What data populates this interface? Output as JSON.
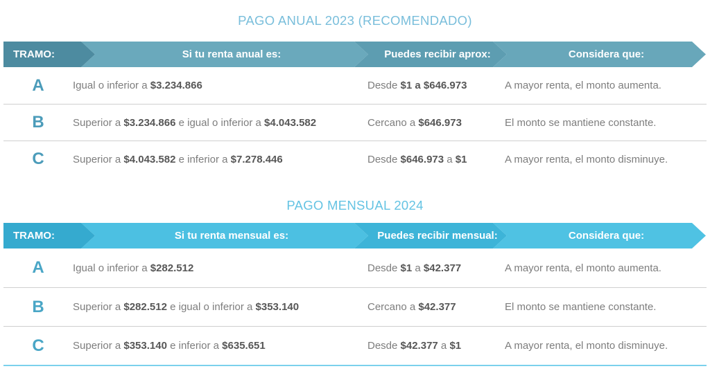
{
  "tables": [
    {
      "title": "PAGO ANUAL 2023 (RECOMENDADO)",
      "columns": [
        "TRAMO:",
        "Si tu renta anual es:",
        "Puedes recibir aprox:",
        "Considera que:"
      ],
      "theme": {
        "title": "#79bedb",
        "seg1": "#4d8ba0",
        "seg2": "#6aa9bc",
        "seg3": "#5d9db1",
        "seg4": "#68a7ba",
        "letter": "#4c9cba"
      },
      "rows": [
        {
          "tramo": "A",
          "renta": [
            {
              "text": "Igual o inferior a ",
              "bold": false
            },
            {
              "text": "$3.234.866",
              "bold": true
            }
          ],
          "recibe": [
            {
              "text": "Desde ",
              "bold": false
            },
            {
              "text": "$1 a $646.973",
              "bold": true
            }
          ],
          "considera": "A mayor renta, el monto aumenta."
        },
        {
          "tramo": "B",
          "renta": [
            {
              "text": "Superior a ",
              "bold": false
            },
            {
              "text": "$3.234.866",
              "bold": true
            },
            {
              "text": " e igual o inferior a ",
              "bold": false
            },
            {
              "text": "$4.043.582",
              "bold": true
            }
          ],
          "recibe": [
            {
              "text": "Cercano a ",
              "bold": false
            },
            {
              "text": "$646.973",
              "bold": true
            }
          ],
          "considera": "El monto se mantiene constante."
        },
        {
          "tramo": "C",
          "renta": [
            {
              "text": "Superior a ",
              "bold": false
            },
            {
              "text": "$4.043.582",
              "bold": true
            },
            {
              "text": " e inferior a ",
              "bold": false
            },
            {
              "text": "$7.278.446",
              "bold": true
            }
          ],
          "recibe": [
            {
              "text": "Desde ",
              "bold": false
            },
            {
              "text": "$646.973",
              "bold": true
            },
            {
              "text": " a ",
              "bold": false
            },
            {
              "text": "$1",
              "bold": true
            }
          ],
          "considera": "A mayor renta, el monto disminuye."
        }
      ]
    },
    {
      "title": "PAGO MENSUAL 2024",
      "columns": [
        "TRAMO:",
        "Si tu renta mensual es:",
        "Puedes recibir mensual:",
        "Considera que:"
      ],
      "theme": {
        "title": "#64c3e3",
        "seg1": "#35aacf",
        "seg2": "#4cc0e2",
        "seg3": "#3db4d8",
        "seg4": "#4fc2e3",
        "letter": "#4aa6c6"
      },
      "rows": [
        {
          "tramo": "A",
          "renta": [
            {
              "text": "Igual o inferior a ",
              "bold": false
            },
            {
              "text": "$282.512",
              "bold": true
            }
          ],
          "recibe": [
            {
              "text": "Desde ",
              "bold": false
            },
            {
              "text": "$1",
              "bold": true
            },
            {
              "text": " a ",
              "bold": false
            },
            {
              "text": "$42.377",
              "bold": true
            }
          ],
          "considera": "A mayor renta, el monto aumenta."
        },
        {
          "tramo": "B",
          "renta": [
            {
              "text": "Superior a ",
              "bold": false
            },
            {
              "text": "$282.512",
              "bold": true
            },
            {
              "text": " e igual o inferior a ",
              "bold": false
            },
            {
              "text": "$353.140",
              "bold": true
            }
          ],
          "recibe": [
            {
              "text": "Cercano a ",
              "bold": false
            },
            {
              "text": "$42.377",
              "bold": true
            }
          ],
          "considera": "El monto se mantiene constante."
        },
        {
          "tramo": "C",
          "renta": [
            {
              "text": "Superior a ",
              "bold": false
            },
            {
              "text": "$353.140",
              "bold": true
            },
            {
              "text": " e inferior a ",
              "bold": false
            },
            {
              "text": "$635.651",
              "bold": true
            }
          ],
          "recibe": [
            {
              "text": "Desde ",
              "bold": false
            },
            {
              "text": "$42.377",
              "bold": true
            },
            {
              "text": " a ",
              "bold": false
            },
            {
              "text": "$1",
              "bold": true
            }
          ],
          "considera": "A mayor renta, el monto disminuye."
        }
      ]
    }
  ]
}
